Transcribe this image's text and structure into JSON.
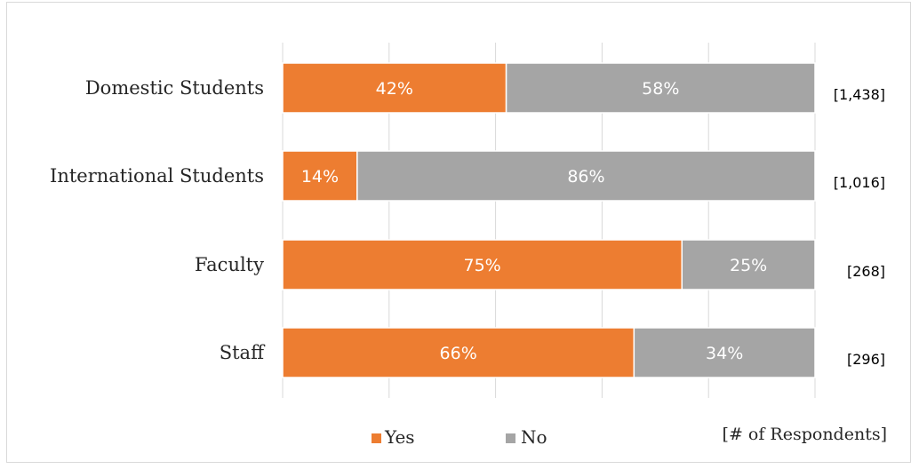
{
  "chart_data": {
    "type": "bar",
    "orientation": "horizontal",
    "stacked": true,
    "categories": [
      "Domestic Students",
      "International Students",
      "Faculty",
      "Staff"
    ],
    "series": [
      {
        "name": "Yes",
        "values": [
          42,
          14,
          75,
          66
        ],
        "labels": [
          "42%",
          "14%",
          "75%",
          "66%"
        ],
        "color": "#ed7d31"
      },
      {
        "name": "No",
        "values": [
          58,
          86,
          25,
          34
        ],
        "labels": [
          "58%",
          "86%",
          "25%",
          "34%"
        ],
        "color": "#a5a5a5"
      }
    ],
    "respondents": [
      "[1,438]",
      "[1,016]",
      "[268]",
      "[296]"
    ],
    "respondents_label": "[# of Respondents]",
    "xlim": [
      0,
      100
    ],
    "grid": true,
    "gridline_count": 5,
    "legend_position": "bottom"
  }
}
